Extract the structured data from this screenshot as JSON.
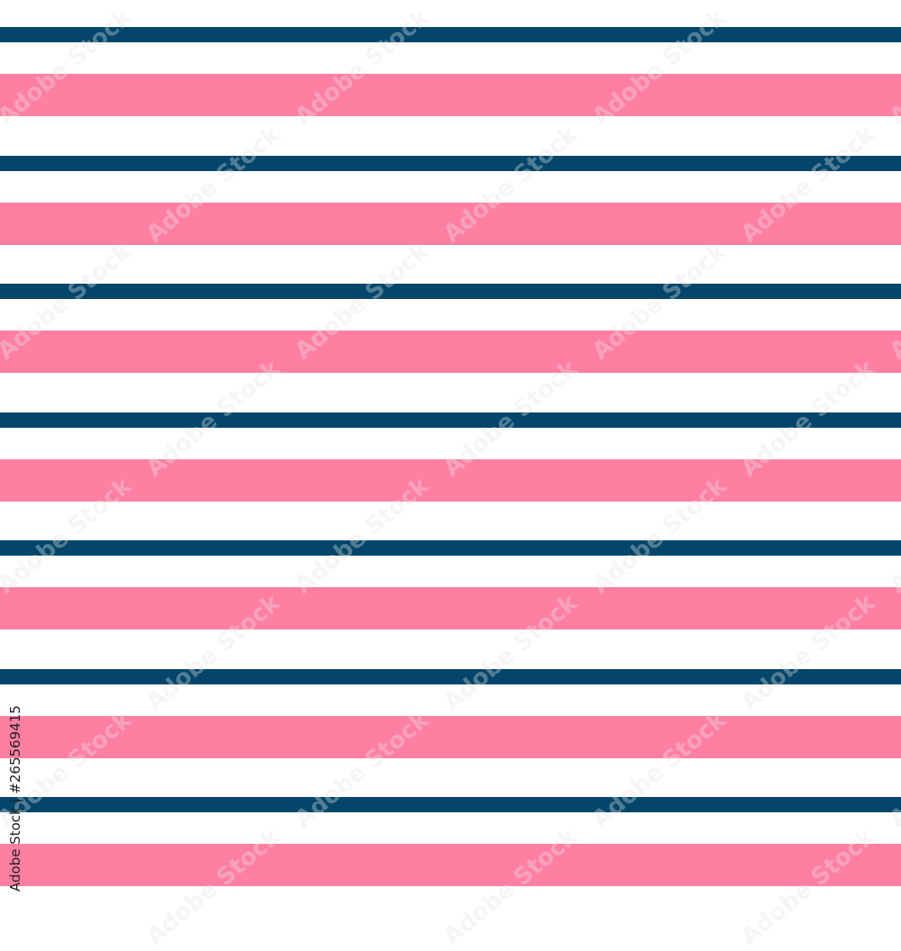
{
  "pattern": {
    "description_colors": {
      "navy": "#03456B",
      "pink": "#FF7FA3",
      "background": "#FFFFFF"
    }
  },
  "watermark": {
    "text": "Adobe Stock"
  },
  "credit": {
    "text": "Adobe Stock | #265569415"
  }
}
